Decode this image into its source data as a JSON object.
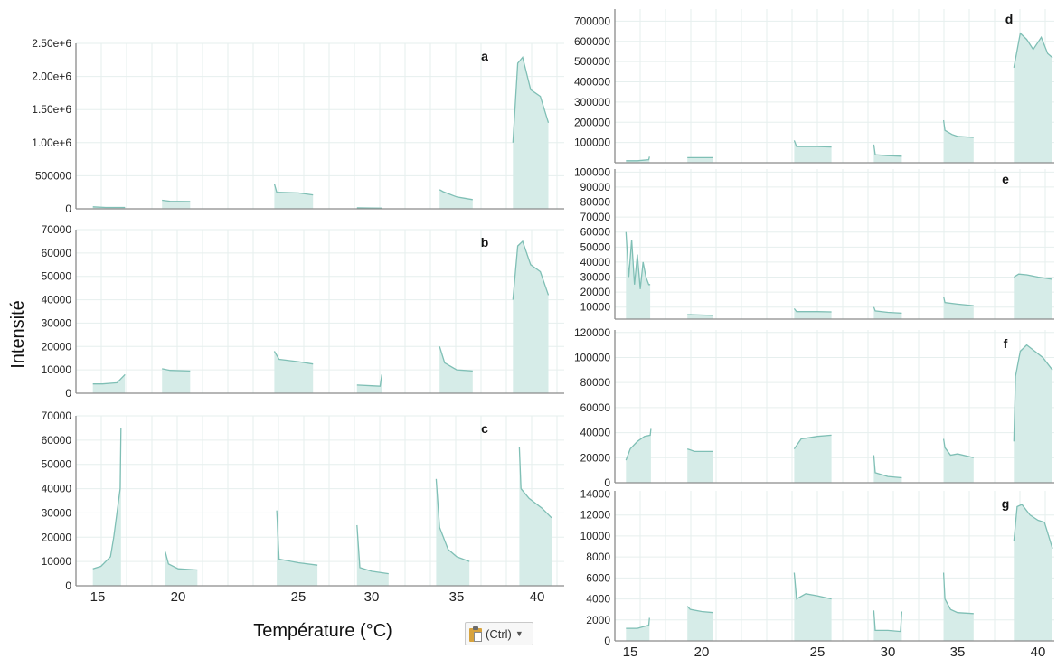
{
  "figure": {
    "y_label": "Intensité",
    "x_label": "Température (°C)",
    "colors": {
      "fill": "#d6ece8",
      "line": "#7fbfb5",
      "grid": "#e6efee",
      "axis": "#8a8a8a"
    }
  },
  "paste_button": {
    "label": "(Ctrl)",
    "icon": "clipboard-icon",
    "caret_icon": "caret-down-icon"
  },
  "chart_data": [
    {
      "type": "area",
      "panel_label": "a",
      "yticks": [
        "0",
        "500000",
        "1.00e+6",
        "1.50e+6",
        "2.00e+6",
        "2.50e+6"
      ],
      "ylim": [
        0,
        2500000
      ],
      "xticks": [],
      "grid": true,
      "segments": [
        {
          "x": [
            14.7,
            15.5,
            16.7
          ],
          "y": [
            30000,
            20000,
            20000
          ]
        },
        {
          "x": [
            19.0,
            19.5,
            20.5
          ],
          "y": [
            130000,
            115000,
            110000
          ]
        },
        {
          "x": [
            24.0,
            24.1,
            25.0,
            26.0
          ],
          "y": [
            380000,
            250000,
            240000,
            210000
          ]
        },
        {
          "x": [
            29.0,
            30.0,
            30.6
          ],
          "y": [
            15000,
            12000,
            10000
          ]
        },
        {
          "x": [
            34.0,
            34.2,
            35.0,
            36.0
          ],
          "y": [
            290000,
            260000,
            180000,
            140000
          ]
        },
        {
          "x": [
            38.5,
            38.8,
            39.1,
            39.6,
            40.2,
            40.7
          ],
          "y": [
            1000000,
            2200000,
            2290000,
            1800000,
            1700000,
            1300000
          ]
        }
      ]
    },
    {
      "type": "area",
      "panel_label": "b",
      "yticks": [
        "0",
        "10000",
        "20000",
        "30000",
        "40000",
        "50000",
        "60000",
        "70000"
      ],
      "ylim": [
        0,
        70000
      ],
      "xticks": [],
      "grid": true,
      "segments": [
        {
          "x": [
            14.7,
            15.3,
            16.2,
            16.7
          ],
          "y": [
            4000,
            4000,
            4500,
            8000
          ]
        },
        {
          "x": [
            19.0,
            19.5,
            20.5
          ],
          "y": [
            10500,
            9800,
            9500
          ]
        },
        {
          "x": [
            24.0,
            24.2,
            25.0,
            26.0
          ],
          "y": [
            18000,
            14500,
            13500,
            12500
          ]
        },
        {
          "x": [
            29.0,
            30.0,
            30.5,
            30.6
          ],
          "y": [
            3500,
            3200,
            3000,
            8000
          ]
        },
        {
          "x": [
            34.0,
            34.3,
            35.0,
            36.0
          ],
          "y": [
            20000,
            13000,
            10000,
            9500
          ]
        },
        {
          "x": [
            38.5,
            38.8,
            39.1,
            39.6,
            40.2,
            40.7
          ],
          "y": [
            40000,
            63000,
            65000,
            55000,
            52000,
            42000
          ]
        }
      ]
    },
    {
      "type": "area",
      "panel_label": "c",
      "yticks": [
        "0",
        "10000",
        "20000",
        "30000",
        "40000",
        "50000",
        "60000",
        "70000"
      ],
      "ylim": [
        0,
        70000
      ],
      "xticks": [
        "15",
        "20",
        "25",
        "30",
        "35",
        "40"
      ],
      "grid": true,
      "segments": [
        {
          "x": [
            14.7,
            15.2,
            15.8,
            16.0,
            16.4,
            16.45
          ],
          "y": [
            7000,
            8000,
            12000,
            20000,
            40000,
            65000
          ]
        },
        {
          "x": [
            19.2,
            19.4,
            20.0,
            20.8
          ],
          "y": [
            14000,
            9000,
            7000,
            6500
          ]
        },
        {
          "x": [
            24.1,
            24.2,
            25.0,
            26.3
          ],
          "y": [
            31000,
            11000,
            9500,
            8500
          ]
        },
        {
          "x": [
            29.0,
            29.2,
            30.0,
            31.0
          ],
          "y": [
            25000,
            7500,
            6000,
            5000
          ]
        },
        {
          "x": [
            33.8,
            34.0,
            34.5,
            35.0,
            35.8
          ],
          "y": [
            44000,
            24000,
            15000,
            12000,
            10000
          ]
        },
        {
          "x": [
            38.9,
            39.0,
            39.5,
            40.3,
            40.9
          ],
          "y": [
            57000,
            40000,
            36000,
            32000,
            28000
          ]
        }
      ]
    },
    {
      "type": "area",
      "panel_label": "d",
      "yticks": [
        "100000",
        "200000",
        "300000",
        "400000",
        "500000",
        "600000",
        "700000"
      ],
      "ylim": [
        0,
        760000
      ],
      "xticks": [],
      "grid": true,
      "segments": [
        {
          "x": [
            14.7,
            15.5,
            16.3,
            16.35
          ],
          "y": [
            10000,
            10000,
            15000,
            30000
          ]
        },
        {
          "x": [
            19.0,
            20.5
          ],
          "y": [
            25000,
            25000
          ]
        },
        {
          "x": [
            24.0,
            24.1,
            25.0,
            26.0
          ],
          "y": [
            110000,
            80000,
            80000,
            78000
          ]
        },
        {
          "x": [
            29.0,
            29.1,
            30.0,
            31.0
          ],
          "y": [
            90000,
            40000,
            35000,
            32000
          ]
        },
        {
          "x": [
            34.0,
            34.1,
            34.6,
            35.0,
            36.0
          ],
          "y": [
            210000,
            160000,
            140000,
            130000,
            125000
          ]
        },
        {
          "x": [
            38.5,
            38.9,
            39.3,
            39.7,
            40.2,
            40.6,
            40.9
          ],
          "y": [
            470000,
            640000,
            610000,
            560000,
            620000,
            540000,
            520000
          ]
        }
      ]
    },
    {
      "type": "area",
      "panel_label": "e",
      "yticks": [
        "10000",
        "20000",
        "30000",
        "40000",
        "50000",
        "60000",
        "70000",
        "80000",
        "90000",
        "100000"
      ],
      "ylim": [
        2000,
        102000
      ],
      "xticks": [],
      "grid": true,
      "segments": [
        {
          "x": [
            14.7,
            14.9,
            15.1,
            15.3,
            15.5,
            15.7,
            15.9,
            16.1,
            16.3,
            16.4
          ],
          "y": [
            60000,
            30000,
            55000,
            25000,
            45000,
            22000,
            40000,
            30000,
            25000,
            25000
          ]
        },
        {
          "x": [
            19.0,
            20.5
          ],
          "y": [
            5000,
            4500
          ]
        },
        {
          "x": [
            24.0,
            24.1,
            25.0,
            26.0
          ],
          "y": [
            9000,
            7000,
            7000,
            6800
          ]
        },
        {
          "x": [
            29.0,
            29.1,
            30.0,
            31.0
          ],
          "y": [
            10000,
            7500,
            6500,
            6000
          ]
        },
        {
          "x": [
            34.0,
            34.1,
            35.0,
            36.0
          ],
          "y": [
            17000,
            13000,
            12000,
            11000
          ]
        },
        {
          "x": [
            38.5,
            38.8,
            39.3,
            40.0,
            40.9
          ],
          "y": [
            30000,
            32000,
            31500,
            30000,
            28500
          ]
        }
      ]
    },
    {
      "type": "area",
      "panel_label": "f",
      "yticks": [
        "0",
        "20000",
        "40000",
        "60000",
        "80000",
        "100000",
        "120000"
      ],
      "ylim": [
        0,
        122000
      ],
      "xticks": [],
      "grid": true,
      "segments": [
        {
          "x": [
            14.7,
            15.0,
            15.5,
            16.0,
            16.4,
            16.45
          ],
          "y": [
            18000,
            27000,
            33000,
            37000,
            38000,
            43000
          ]
        },
        {
          "x": [
            19.0,
            19.5,
            20.5
          ],
          "y": [
            27000,
            25000,
            25000
          ]
        },
        {
          "x": [
            24.0,
            24.3,
            25.0,
            26.0
          ],
          "y": [
            27000,
            35000,
            37000,
            38000
          ]
        },
        {
          "x": [
            29.0,
            29.1,
            30.0,
            31.0
          ],
          "y": [
            22000,
            8000,
            5000,
            4000
          ]
        },
        {
          "x": [
            34.0,
            34.1,
            34.5,
            35.0,
            36.0
          ],
          "y": [
            35000,
            28000,
            22000,
            23000,
            20000
          ]
        },
        {
          "x": [
            38.5,
            38.6,
            38.9,
            39.3,
            39.8,
            40.3,
            40.9
          ],
          "y": [
            33000,
            85000,
            105000,
            110000,
            105000,
            100000,
            90000
          ]
        }
      ]
    },
    {
      "type": "area",
      "panel_label": "g",
      "yticks": [
        "0",
        "2000",
        "4000",
        "6000",
        "8000",
        "10000",
        "12000",
        "14000"
      ],
      "ylim": [
        0,
        14300
      ],
      "xticks": [
        "15",
        "20",
        "25",
        "30",
        "35",
        "40"
      ],
      "grid": true,
      "segments": [
        {
          "x": [
            14.7,
            15.5,
            16.3,
            16.35
          ],
          "y": [
            1200,
            1200,
            1500,
            2200
          ]
        },
        {
          "x": [
            19.0,
            19.2,
            20.0,
            20.5
          ],
          "y": [
            3300,
            3000,
            2800,
            2700
          ]
        },
        {
          "x": [
            24.0,
            24.1,
            24.5,
            25.0,
            26.0
          ],
          "y": [
            6500,
            4000,
            4500,
            4300,
            4000
          ]
        },
        {
          "x": [
            29.0,
            29.1,
            30.0,
            30.9,
            31.0
          ],
          "y": [
            2900,
            1000,
            1000,
            900,
            2800
          ]
        },
        {
          "x": [
            34.0,
            34.1,
            34.5,
            35.0,
            36.0
          ],
          "y": [
            6500,
            4000,
            3000,
            2700,
            2600
          ]
        },
        {
          "x": [
            38.5,
            38.7,
            39.0,
            39.5,
            40.0,
            40.4,
            40.9
          ],
          "y": [
            9500,
            12800,
            13000,
            12000,
            11500,
            11300,
            8800
          ]
        }
      ]
    }
  ]
}
